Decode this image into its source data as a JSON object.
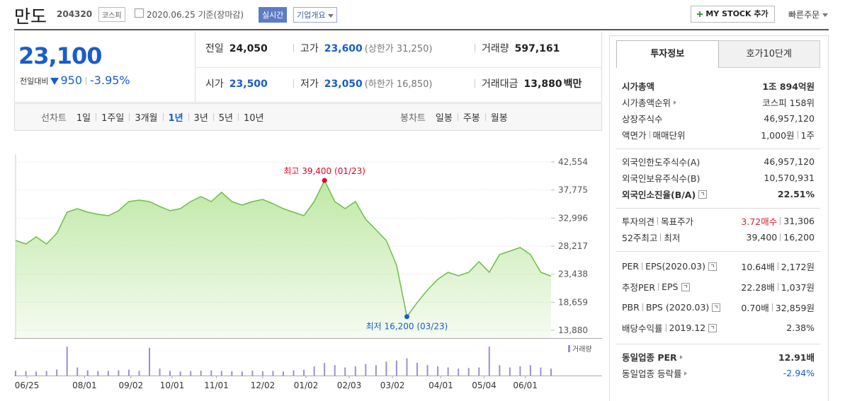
{
  "header": {
    "name": "만도",
    "code": "204320",
    "market": "코스피",
    "date": "2020.06.25 기준(장마감)",
    "realtime": "실시간",
    "company_info": "기업개요",
    "my_stock": "MY STOCK 추가",
    "quick_order": "빠른주문"
  },
  "price": {
    "current": "23,100",
    "change_label": "전일대비",
    "change": "950",
    "change_rate": "-3.95%",
    "color": "#1a5dcc"
  },
  "summary": [
    {
      "label": "전일",
      "value": "24,050"
    },
    {
      "label": "고가",
      "value": "23,600",
      "note": "(상한가 31,250)",
      "color": "#1a5dcc"
    },
    {
      "label": "거래량",
      "value": "597,161"
    },
    {
      "label": "시가",
      "value": "23,500",
      "color": "#1a5dcc"
    },
    {
      "label": "저가",
      "value": "23,050",
      "note": "(하한가 16,850)",
      "color": "#1a5dcc"
    },
    {
      "label": "거래대금",
      "value": "13,880",
      "unit": "백만"
    }
  ],
  "period_tabs": {
    "line_label": "선차트",
    "line": [
      "1일",
      "1주일",
      "3개월",
      "1년",
      "3년",
      "5년",
      "10년"
    ],
    "selected": "1년",
    "candle_label": "봉차트",
    "candle": [
      "일봉",
      "주봉",
      "월봉"
    ]
  },
  "chart_data": {
    "type": "line",
    "color": "#6cbf45",
    "fill": "#bfe8a6",
    "values": [
      29180,
      28580,
      29800,
      28580,
      30390,
      34000,
      34600,
      34000,
      33640,
      33400,
      34250,
      35810,
      36050,
      35810,
      34970,
      34250,
      34600,
      35810,
      36650,
      35810,
      37380,
      35810,
      35210,
      35810,
      36170,
      35450,
      34600,
      34000,
      33400,
      35810,
      39400,
      35810,
      34600,
      35810,
      32800,
      30990,
      29180,
      24970,
      16200,
      18600,
      20750,
      22560,
      23760,
      23160,
      23760,
      25570,
      23760,
      26770,
      27370,
      27980,
      26770,
      23760,
      23100
    ],
    "xlim": [
      0,
      52
    ],
    "xticks": [
      {
        "value": 1.1,
        "label": "06/25"
      },
      {
        "value": 6.7,
        "label": "08/01"
      },
      {
        "value": 11.2,
        "label": "09/02"
      },
      {
        "value": 15.2,
        "label": "10/01"
      },
      {
        "value": 19.5,
        "label": "11/01"
      },
      {
        "value": 24,
        "label": "12/02"
      },
      {
        "value": 28.2,
        "label": "01/02"
      },
      {
        "value": 32.4,
        "label": "02/03"
      },
      {
        "value": 36.6,
        "label": "03/02"
      },
      {
        "value": 41.3,
        "label": "04/01"
      },
      {
        "value": 45.5,
        "label": "05/04"
      },
      {
        "value": 49.5,
        "label": "06/01"
      }
    ],
    "ylim": [
      13880,
      42554
    ],
    "yticks": [
      {
        "value": 42554,
        "label": "42,554"
      },
      {
        "value": 37775,
        "label": "37,775"
      },
      {
        "value": 32996,
        "label": "32,996"
      },
      {
        "value": 28217,
        "label": "28,217"
      },
      {
        "value": 23438,
        "label": "23,438"
      },
      {
        "value": 18659,
        "label": "18,659"
      },
      {
        "value": 13880,
        "label": "13,880"
      }
    ],
    "grid": true,
    "annotations": [
      {
        "text": "최고 39,400 (01/23)",
        "x": 30,
        "y": 39400,
        "color": "#e4032b",
        "position": "above"
      },
      {
        "text": "최저 16,200 (03/23)",
        "x": 38,
        "y": 16200,
        "color": "#1a5dcc",
        "position": "below"
      }
    ],
    "volume": {
      "name": "거래량",
      "color": "#9d8fcf",
      "ylim": [
        0,
        3000000
      ],
      "values": [
        420000,
        380000,
        350000,
        400000,
        520000,
        2500000,
        700000,
        450000,
        380000,
        400000,
        450000,
        500000,
        420000,
        2400000,
        600000,
        400000,
        350000,
        380000,
        420000,
        450000,
        400000,
        380000,
        350000,
        420000,
        380000,
        400000,
        350000,
        450000,
        500000,
        800000,
        1100000,
        900000,
        700000,
        800000,
        1000000,
        900000,
        1200000,
        1300000,
        1500000,
        1100000,
        900000,
        800000,
        700000,
        600000,
        650000,
        700000,
        2500000,
        900000,
        700000,
        800000,
        900000,
        700000,
        597161
      ]
    }
  },
  "side": {
    "tabs": [
      "투자정보",
      "호가10단계"
    ],
    "groups": [
      [
        {
          "label": [
            "시가총액"
          ],
          "value": [
            "1조 894억원"
          ],
          "bold": true
        },
        {
          "label": [
            "시가총액순위"
          ],
          "link": true,
          "value": [
            "코스피 158위"
          ]
        },
        {
          "label": [
            "상장주식수"
          ],
          "value": [
            "46,957,120"
          ]
        },
        {
          "label": [
            "액면가",
            "매매단위"
          ],
          "value": [
            "1,000원",
            "1주"
          ]
        }
      ],
      [
        {
          "label": [
            "외국인한도주식수(A)"
          ],
          "value": [
            "46,957,120"
          ]
        },
        {
          "label": [
            "외국인보유주식수(B)"
          ],
          "value": [
            "10,570,931"
          ]
        },
        {
          "label": [
            "외국인소진율(B/A)"
          ],
          "help": true,
          "value": [
            "22.51%"
          ],
          "bold": true
        }
      ],
      [
        {
          "label": [
            "투자의견",
            "목표주가"
          ],
          "value": [
            "3.72매수",
            "31,306"
          ],
          "color": "#d3222a"
        },
        {
          "label": [
            "52주최고",
            "최저"
          ],
          "value": [
            "39,400",
            "16,200"
          ]
        }
      ],
      [
        {
          "label": [
            "PER",
            "EPS(2020.03)"
          ],
          "help": true,
          "value": [
            "10.64배",
            "2,172원"
          ]
        },
        {
          "label": [
            "추정PER",
            "EPS"
          ],
          "help": true,
          "value": [
            "22.28배",
            "1,037원"
          ]
        },
        {
          "label": [
            "PBR",
            "BPS (2020.03)"
          ],
          "help": true,
          "value": [
            "0.70배",
            "32,859원"
          ]
        },
        {
          "label": [
            "배당수익률",
            "2019.12"
          ],
          "help": true,
          "value": [
            "2.38%"
          ]
        }
      ],
      [
        {
          "label": [
            "동일업종 PER"
          ],
          "link": true,
          "value": [
            "12.91배"
          ],
          "bold": true
        },
        {
          "label": [
            "동일업종 등락률"
          ],
          "link": true,
          "value": [
            "-2.94%"
          ],
          "color": "#1a5dcc"
        }
      ]
    ]
  }
}
